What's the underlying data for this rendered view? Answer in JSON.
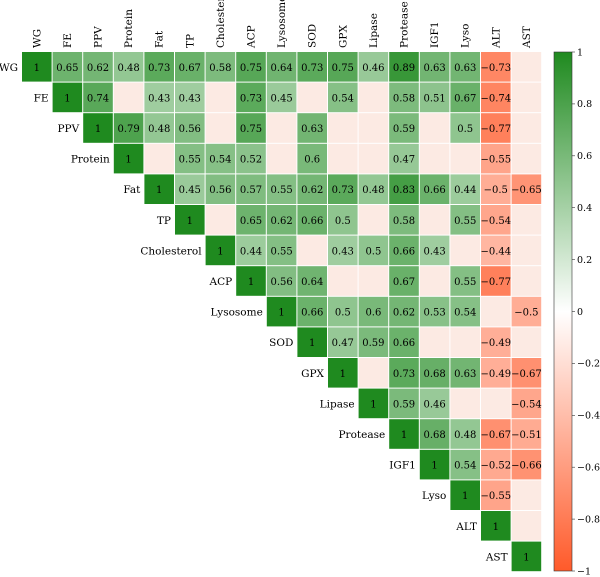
{
  "chart_data": {
    "type": "heatmap",
    "variables": [
      "WG",
      "FE",
      "PPV",
      "Protein",
      "Fat",
      "TP",
      "Cholesterol",
      "ACP",
      "Lysosome",
      "SOD",
      "GPX",
      "Lipase",
      "Protease",
      "IGF1",
      "Lyso",
      "ALT",
      "AST"
    ],
    "matrix": [
      [
        1,
        0.65,
        0.62,
        0.48,
        0.73,
        0.67,
        0.58,
        0.75,
        0.64,
        0.73,
        0.75,
        0.46,
        0.89,
        0.63,
        0.63,
        -0.73,
        null
      ],
      [
        null,
        1,
        0.74,
        null,
        0.43,
        0.43,
        null,
        0.73,
        0.45,
        null,
        0.54,
        null,
        0.58,
        0.51,
        0.67,
        -0.74,
        null
      ],
      [
        null,
        null,
        1,
        0.79,
        0.48,
        0.56,
        null,
        0.75,
        null,
        0.63,
        null,
        null,
        0.59,
        null,
        0.5,
        -0.77,
        null
      ],
      [
        null,
        null,
        null,
        1,
        null,
        0.55,
        0.54,
        0.52,
        null,
        0.6,
        null,
        null,
        0.47,
        null,
        null,
        -0.55,
        null
      ],
      [
        null,
        null,
        null,
        null,
        1,
        0.45,
        0.56,
        0.57,
        0.55,
        0.62,
        0.73,
        0.48,
        0.83,
        0.66,
        0.44,
        -0.5,
        -0.65
      ],
      [
        null,
        null,
        null,
        null,
        null,
        1,
        null,
        0.65,
        0.62,
        0.66,
        0.5,
        null,
        0.58,
        null,
        0.55,
        -0.54,
        null
      ],
      [
        null,
        null,
        null,
        null,
        null,
        null,
        1,
        0.44,
        0.55,
        null,
        0.43,
        0.5,
        0.66,
        0.43,
        null,
        -0.44,
        null
      ],
      [
        null,
        null,
        null,
        null,
        null,
        null,
        null,
        1,
        0.56,
        0.64,
        null,
        null,
        0.67,
        null,
        0.55,
        -0.77,
        null
      ],
      [
        null,
        null,
        null,
        null,
        null,
        null,
        null,
        null,
        1,
        0.66,
        0.5,
        0.6,
        0.62,
        0.53,
        0.54,
        null,
        -0.5
      ],
      [
        null,
        null,
        null,
        null,
        null,
        null,
        null,
        null,
        null,
        1,
        0.47,
        0.59,
        0.66,
        null,
        null,
        -0.49,
        null
      ],
      [
        null,
        null,
        null,
        null,
        null,
        null,
        null,
        null,
        null,
        null,
        1,
        null,
        0.73,
        0.68,
        0.63,
        -0.49,
        -0.67
      ],
      [
        null,
        null,
        null,
        null,
        null,
        null,
        null,
        null,
        null,
        null,
        null,
        1,
        0.59,
        0.46,
        null,
        null,
        -0.54
      ],
      [
        null,
        null,
        null,
        null,
        null,
        null,
        null,
        null,
        null,
        null,
        null,
        null,
        1,
        0.68,
        0.48,
        -0.67,
        -0.51
      ],
      [
        null,
        null,
        null,
        null,
        null,
        null,
        null,
        null,
        null,
        null,
        null,
        null,
        null,
        1,
        0.54,
        -0.52,
        -0.66
      ],
      [
        null,
        null,
        null,
        null,
        null,
        null,
        null,
        null,
        null,
        null,
        null,
        null,
        null,
        null,
        1,
        -0.55,
        null
      ],
      [
        null,
        null,
        null,
        null,
        null,
        null,
        null,
        null,
        null,
        null,
        null,
        null,
        null,
        null,
        null,
        1,
        null
      ],
      [
        null,
        null,
        null,
        null,
        null,
        null,
        null,
        null,
        null,
        null,
        null,
        null,
        null,
        null,
        null,
        null,
        1
      ]
    ],
    "label_values": [
      [
        "1",
        "0.65",
        "0.62",
        "0.48",
        "0.73",
        "0.67",
        "0.58",
        "0.75",
        "0.64",
        "0.73",
        "0.75",
        "0.46",
        "0.89",
        "0.63",
        "0.63",
        "−0.73",
        ""
      ],
      [
        "",
        "1",
        "0.74",
        "",
        "0.43",
        "0.43",
        "",
        "0.73",
        "0.45",
        "",
        "0.54",
        "",
        "0.58",
        "0.51",
        "0.67",
        "−0.74",
        ""
      ],
      [
        "",
        "",
        "1",
        "0.79",
        "0.48",
        "0.56",
        "",
        "0.75",
        "",
        "0.63",
        "",
        "",
        "0.59",
        "",
        "0.5",
        "−0.77",
        ""
      ],
      [
        "",
        "",
        "",
        "1",
        "",
        "0.55",
        "0.54",
        "0.52",
        "",
        "0.6",
        "",
        "",
        "0.47",
        "",
        "",
        "−0.55",
        ""
      ],
      [
        "",
        "",
        "",
        "",
        "1",
        "0.45",
        "0.56",
        "0.57",
        "0.55",
        "0.62",
        "0.73",
        "0.48",
        "0.83",
        "0.66",
        "0.44",
        "−0.5",
        "−0.65"
      ],
      [
        "",
        "",
        "",
        "",
        "",
        "1",
        "",
        "0.65",
        "0.62",
        "0.66",
        "0.5",
        "",
        "0.58",
        "",
        "0.55",
        "−0.54",
        ""
      ],
      [
        "",
        "",
        "",
        "",
        "",
        "",
        "1",
        "0.44",
        "0.55",
        "",
        "0.43",
        "0.5",
        "0.66",
        "0.43",
        "",
        "−0.44",
        ""
      ],
      [
        "",
        "",
        "",
        "",
        "",
        "",
        "",
        "1",
        "0.56",
        "0.64",
        "",
        "",
        "0.67",
        "",
        "0.55",
        "−0.77",
        ""
      ],
      [
        "",
        "",
        "",
        "",
        "",
        "",
        "",
        "",
        "1",
        "0.66",
        "0.5",
        "0.6",
        "0.62",
        "0.53",
        "0.54",
        "",
        "−0.5"
      ],
      [
        "",
        "",
        "",
        "",
        "",
        "",
        "",
        "",
        "",
        "1",
        "0.47",
        "0.59",
        "0.66",
        "",
        "",
        "−0.49",
        ""
      ],
      [
        "",
        "",
        "",
        "",
        "",
        "",
        "",
        "",
        "",
        "",
        "1",
        "",
        "0.73",
        "0.68",
        "0.63",
        "−0.49",
        "−0.67"
      ],
      [
        "",
        "",
        "",
        "",
        "",
        "",
        "",
        "",
        "",
        "",
        "",
        "1",
        "0.59",
        "0.46",
        "",
        "",
        "−0.54"
      ],
      [
        "",
        "",
        "",
        "",
        "",
        "",
        "",
        "",
        "",
        "",
        "",
        "",
        "1",
        "0.68",
        "0.48",
        "−0.67",
        "−0.51"
      ],
      [
        "",
        "",
        "",
        "",
        "",
        "",
        "",
        "",
        "",
        "",
        "",
        "",
        "",
        "1",
        "0.54",
        "−0.52",
        "−0.66"
      ],
      [
        "",
        "",
        "",
        "",
        "",
        "",
        "",
        "",
        "",
        "",
        "",
        "",
        "",
        "",
        "1",
        "−0.55",
        ""
      ],
      [
        "",
        "",
        "",
        "",
        "",
        "",
        "",
        "",
        "",
        "",
        "",
        "",
        "",
        "",
        "",
        "1",
        ""
      ],
      [
        "",
        "",
        "",
        "",
        "",
        "",
        "",
        "",
        "",
        "",
        "",
        "",
        "",
        "",
        "",
        "",
        "1"
      ]
    ],
    "upper_triangle_only": true,
    "insignificant_fill": "#fceae3",
    "colorbar": {
      "range": [
        -1,
        1
      ],
      "ticks": [
        1,
        0.8,
        0.6,
        0.4,
        0.2,
        0,
        -0.2,
        -0.4,
        -0.6,
        -0.8,
        -1
      ],
      "tick_labels": [
        "1",
        "0.8",
        "0.6",
        "0.4",
        "0.2",
        "0",
        "−0.2",
        "−0.4",
        "−0.6",
        "−0.8",
        "−1"
      ],
      "colors": {
        "positive": "#1f8a1f",
        "zero": "#ffffff",
        "negative": "#ff5a2a"
      }
    }
  }
}
